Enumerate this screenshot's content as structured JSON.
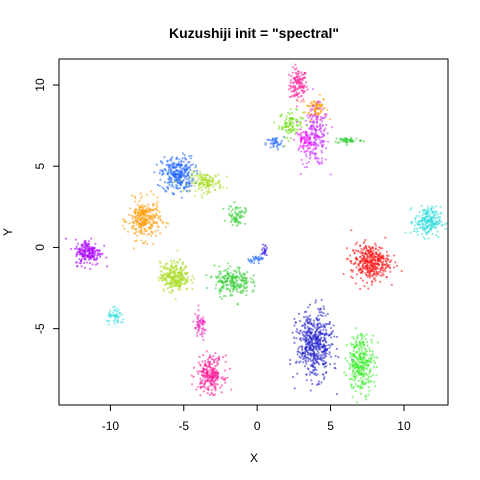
{
  "chart_data": {
    "type": "scatter",
    "title": "Kuzushiji init = \"spectral\"",
    "xlabel": "X",
    "ylabel": "Y",
    "xlim": [
      -13.5,
      13
    ],
    "ylim": [
      -9.7,
      11.6
    ],
    "x_ticks": [
      -10,
      -5,
      0,
      5,
      10
    ],
    "y_ticks": [
      -5,
      0,
      5,
      10
    ],
    "x_tick_labels": [
      "-10",
      "-5",
      "0",
      "5",
      "10"
    ],
    "y_tick_labels": [
      "-5",
      "0",
      "5",
      "10"
    ],
    "grid": false,
    "legend": false,
    "clusters": [
      {
        "color": "#ff1493",
        "cx": 2.8,
        "cy": 10.0,
        "sx": 0.3,
        "sy": 0.5,
        "n": 120
      },
      {
        "color": "#ff9900",
        "cx": 4.0,
        "cy": 8.6,
        "sx": 0.35,
        "sy": 0.35,
        "n": 80
      },
      {
        "color": "#66dd00",
        "cx": 2.3,
        "cy": 7.6,
        "sx": 0.4,
        "sy": 0.4,
        "n": 90
      },
      {
        "color": "#cc33ff",
        "cx": 4.0,
        "cy": 6.8,
        "sx": 0.45,
        "sy": 0.9,
        "n": 220
      },
      {
        "color": "#ff00ff",
        "cx": 3.2,
        "cy": 6.6,
        "sx": 0.3,
        "sy": 0.3,
        "n": 60
      },
      {
        "color": "#1f66ff",
        "cx": 1.2,
        "cy": 6.4,
        "sx": 0.3,
        "sy": 0.2,
        "n": 40
      },
      {
        "color": "#33cc33",
        "cx": 6.2,
        "cy": 6.6,
        "sx": 0.5,
        "sy": 0.1,
        "n": 50
      },
      {
        "color": "#1f66ff",
        "cx": -5.4,
        "cy": 4.5,
        "sx": 0.55,
        "sy": 0.55,
        "n": 300
      },
      {
        "color": "#aadd22",
        "cx": -3.5,
        "cy": 4.0,
        "sx": 0.55,
        "sy": 0.3,
        "n": 140
      },
      {
        "color": "#ff9900",
        "cx": -7.7,
        "cy": 1.7,
        "sx": 0.55,
        "sy": 0.6,
        "n": 280
      },
      {
        "color": "#33cc33",
        "cx": -1.4,
        "cy": 2.0,
        "sx": 0.3,
        "sy": 0.3,
        "n": 70
      },
      {
        "color": "#33dddd",
        "cx": 11.6,
        "cy": 1.6,
        "sx": 0.45,
        "sy": 0.45,
        "n": 220
      },
      {
        "color": "#aa00ff",
        "cx": -11.5,
        "cy": -0.3,
        "sx": 0.45,
        "sy": 0.4,
        "n": 200
      },
      {
        "color": "#ff1111",
        "cx": 7.7,
        "cy": -0.9,
        "sx": 0.65,
        "sy": 0.55,
        "n": 380
      },
      {
        "color": "#aadd22",
        "cx": -5.6,
        "cy": -1.8,
        "sx": 0.5,
        "sy": 0.45,
        "n": 280
      },
      {
        "color": "#33cc33",
        "cx": -1.7,
        "cy": -2.1,
        "sx": 0.6,
        "sy": 0.45,
        "n": 220
      },
      {
        "color": "#3311ee",
        "cx": 0.5,
        "cy": -0.2,
        "sx": 0.1,
        "sy": 0.2,
        "n": 20
      },
      {
        "color": "#1f66ff",
        "cx": 0.0,
        "cy": -0.7,
        "sx": 0.3,
        "sy": 0.1,
        "n": 30
      },
      {
        "color": "#33dddd",
        "cx": -9.6,
        "cy": -4.3,
        "sx": 0.3,
        "sy": 0.25,
        "n": 50
      },
      {
        "color": "#ee22bb",
        "cx": -3.9,
        "cy": -4.9,
        "sx": 0.25,
        "sy": 0.4,
        "n": 60
      },
      {
        "color": "#ff1493",
        "cx": -3.2,
        "cy": -7.8,
        "sx": 0.45,
        "sy": 0.55,
        "n": 240
      },
      {
        "color": "#2222cc",
        "cx": 3.9,
        "cy": -6.0,
        "sx": 0.6,
        "sy": 1.0,
        "n": 520
      },
      {
        "color": "#33ee22",
        "cx": 7.1,
        "cy": -7.1,
        "sx": 0.45,
        "sy": 0.9,
        "n": 300
      }
    ]
  }
}
